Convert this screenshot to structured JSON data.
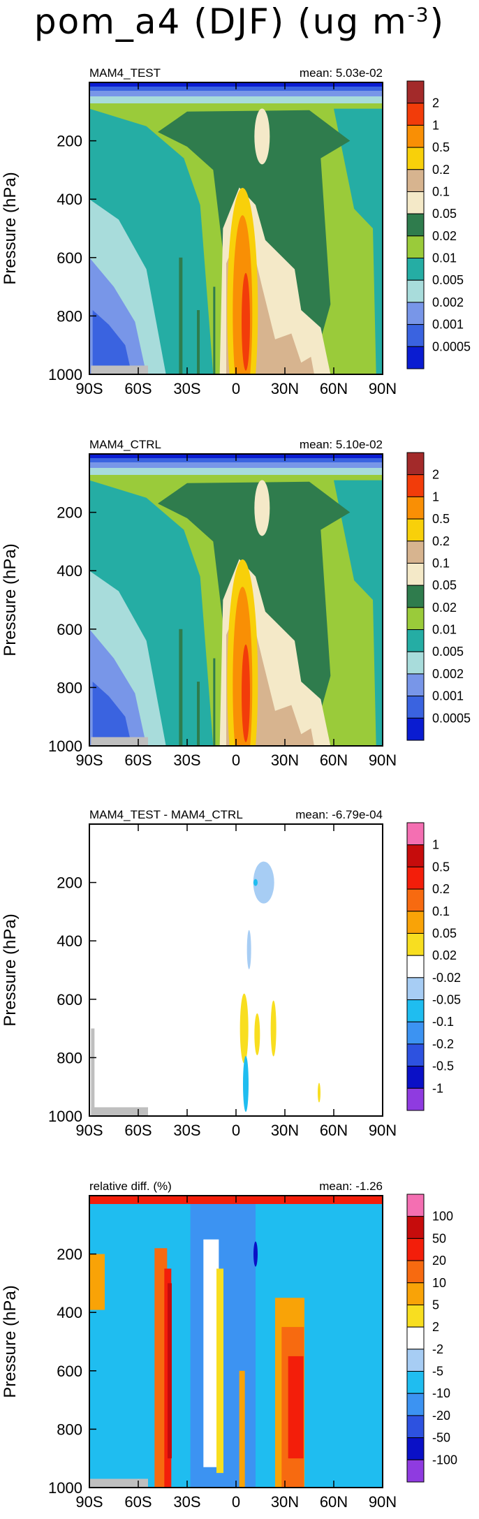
{
  "title": "pom_a4 (DJF) (ug m",
  "title_exponent": "-3",
  "title_close": ")",
  "chart_data": [
    {
      "type": "filled-contour",
      "panel": "MAM4_TEST",
      "mean_text": "mean: 5.03e-02",
      "ylabel": "Pressure (hPa)",
      "x_ticks": [
        "90S",
        "60S",
        "30S",
        "0",
        "30N",
        "60N",
        "90N"
      ],
      "y_ticks": [
        "200",
        "400",
        "600",
        "800",
        "1000"
      ],
      "ylim": [
        1000,
        0
      ],
      "xlim": [
        -90,
        90
      ],
      "levels": [
        "2",
        "1",
        "0.5",
        "0.2",
        "0.1",
        "0.05",
        "0.02",
        "0.01",
        "0.005",
        "0.002",
        "0.001",
        "0.0005"
      ],
      "colors": [
        "#a32a2a",
        "#f23c0a",
        "#f98f05",
        "#f8d00a",
        "#d7b48f",
        "#f4e9c8",
        "#2f7c4d",
        "#9acb3a",
        "#25ada4",
        "#a8dcdb",
        "#7896e8",
        "#3a63e0",
        "#0a1cd1"
      ],
      "features": [
        "polar-surface",
        "equatorial-core"
      ]
    },
    {
      "type": "filled-contour",
      "panel": "MAM4_CTRL",
      "mean_text": "mean: 5.10e-02",
      "ylabel": "Pressure (hPa)",
      "x_ticks": [
        "90S",
        "60S",
        "30S",
        "0",
        "30N",
        "60N",
        "90N"
      ],
      "y_ticks": [
        "200",
        "400",
        "600",
        "800",
        "1000"
      ],
      "ylim": [
        1000,
        0
      ],
      "xlim": [
        -90,
        90
      ],
      "levels": [
        "2",
        "1",
        "0.5",
        "0.2",
        "0.1",
        "0.05",
        "0.02",
        "0.01",
        "0.005",
        "0.002",
        "0.001",
        "0.0005"
      ],
      "colors": [
        "#a32a2a",
        "#f23c0a",
        "#f98f05",
        "#f8d00a",
        "#d7b48f",
        "#f4e9c8",
        "#2f7c4d",
        "#9acb3a",
        "#25ada4",
        "#a8dcdb",
        "#7896e8",
        "#3a63e0",
        "#0a1cd1"
      ],
      "features": [
        "polar-surface",
        "equatorial-core"
      ]
    },
    {
      "type": "filled-contour",
      "panel": "MAM4_TEST - MAM4_CTRL",
      "mean_text": "mean: -6.79e-04",
      "ylabel": "Pressure (hPa)",
      "x_ticks": [
        "90S",
        "60S",
        "30S",
        "0",
        "30N",
        "60N",
        "90N"
      ],
      "y_ticks": [
        "200",
        "400",
        "600",
        "800",
        "1000"
      ],
      "ylim": [
        1000,
        0
      ],
      "xlim": [
        -90,
        90
      ],
      "levels": [
        "1",
        "0.5",
        "0.2",
        "0.1",
        "0.05",
        "0.02",
        "-0.02",
        "-0.05",
        "-0.1",
        "-0.2",
        "-0.5",
        "-1"
      ],
      "colors": [
        "#f46fb2",
        "#c60c0c",
        "#f31e0a",
        "#f76a10",
        "#f9a307",
        "#f8de20",
        "#ffffff",
        "#a7cdf4",
        "#1fbdf0",
        "#3c93f2",
        "#2d52e0",
        "#0a10c6",
        "#8f3be0"
      ],
      "features": [
        "sparse-anomalies"
      ]
    },
    {
      "type": "filled-contour",
      "panel": "relative diff. (%)",
      "mean_text": "mean: -1.26",
      "ylabel": "Pressure (hPa)",
      "x_ticks": [
        "90S",
        "60S",
        "30S",
        "0",
        "30N",
        "60N",
        "90N"
      ],
      "y_ticks": [
        "200",
        "400",
        "600",
        "800",
        "1000"
      ],
      "ylim": [
        1000,
        0
      ],
      "xlim": [
        -90,
        90
      ],
      "levels": [
        "100",
        "50",
        "20",
        "10",
        "5",
        "2",
        "-2",
        "-5",
        "-10",
        "-20",
        "-50",
        "-100"
      ],
      "colors": [
        "#f46fb2",
        "#c60c0c",
        "#f31e0a",
        "#f76a10",
        "#f9a307",
        "#f8de20",
        "#ffffff",
        "#a7cdf4",
        "#1fbdf0",
        "#3c93f2",
        "#2d52e0",
        "#0a10c6",
        "#8f3be0"
      ],
      "features": [
        "relative-bands"
      ]
    }
  ]
}
